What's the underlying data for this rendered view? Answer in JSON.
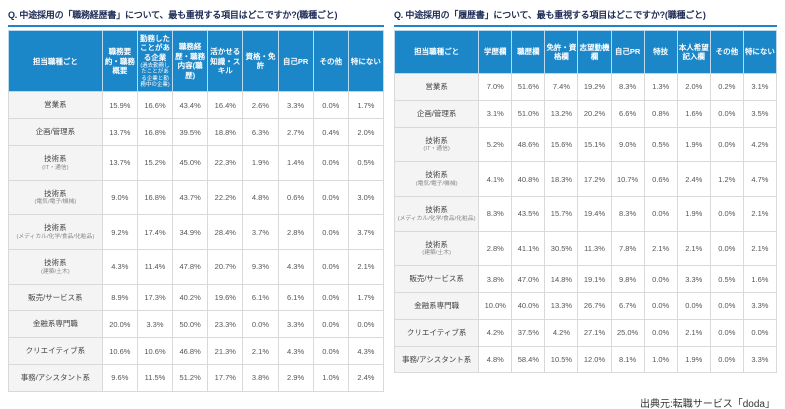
{
  "footer": {
    "source": "出典元:転職サービス「doda」"
  },
  "chart_data": [
    {
      "type": "table",
      "title": "Q. 中途採用の「職務経歴書」について、最も重視する項目はどこですか?(職種ごと)",
      "row_header_label": "担当職種ごと",
      "columns": [
        {
          "label": "職務要約・職務概要",
          "note": ""
        },
        {
          "label": "勤務したことがある企業",
          "note": "(過去勤務したことがある企業と勤務中の企業)"
        },
        {
          "label": "職務経歴・職務内容(職歴)",
          "note": ""
        },
        {
          "label": "活かせる知識・スキル",
          "note": ""
        },
        {
          "label": "資格・免許",
          "note": ""
        },
        {
          "label": "自己PR",
          "note": ""
        },
        {
          "label": "その他",
          "note": ""
        },
        {
          "label": "特にない",
          "note": ""
        }
      ],
      "rows": [
        {
          "label": "営業系",
          "sublabel": "",
          "values": [
            "15.9%",
            "16.6%",
            "43.4%",
            "16.4%",
            "2.6%",
            "3.3%",
            "0.0%",
            "1.7%"
          ]
        },
        {
          "label": "企画/管理系",
          "sublabel": "",
          "values": [
            "13.7%",
            "16.8%",
            "39.5%",
            "18.8%",
            "6.3%",
            "2.7%",
            "0.4%",
            "2.0%"
          ]
        },
        {
          "label": "技術系",
          "sublabel": "(IT・通信)",
          "values": [
            "13.7%",
            "15.2%",
            "45.0%",
            "22.3%",
            "1.9%",
            "1.4%",
            "0.0%",
            "0.5%"
          ]
        },
        {
          "label": "技術系",
          "sublabel": "(電気/電子/機械)",
          "values": [
            "9.0%",
            "16.8%",
            "43.7%",
            "22.2%",
            "4.8%",
            "0.6%",
            "0.0%",
            "3.0%"
          ]
        },
        {
          "label": "技術系",
          "sublabel": "(メディカル/化学/食品/化粧品)",
          "values": [
            "9.2%",
            "17.4%",
            "34.9%",
            "28.4%",
            "3.7%",
            "2.8%",
            "0.0%",
            "3.7%"
          ]
        },
        {
          "label": "技術系",
          "sublabel": "(建築/土木)",
          "values": [
            "4.3%",
            "11.4%",
            "47.8%",
            "20.7%",
            "9.3%",
            "4.3%",
            "0.0%",
            "2.1%"
          ]
        },
        {
          "label": "販売/サービス系",
          "sublabel": "",
          "values": [
            "8.9%",
            "17.3%",
            "40.2%",
            "19.6%",
            "6.1%",
            "6.1%",
            "0.0%",
            "1.7%"
          ]
        },
        {
          "label": "金融系専門職",
          "sublabel": "",
          "values": [
            "20.0%",
            "3.3%",
            "50.0%",
            "23.3%",
            "0.0%",
            "3.3%",
            "0.0%",
            "0.0%"
          ]
        },
        {
          "label": "クリエイティブ系",
          "sublabel": "",
          "values": [
            "10.6%",
            "10.6%",
            "46.8%",
            "21.3%",
            "2.1%",
            "4.3%",
            "0.0%",
            "4.3%"
          ]
        },
        {
          "label": "事務/アシスタント系",
          "sublabel": "",
          "values": [
            "9.6%",
            "11.5%",
            "51.2%",
            "17.7%",
            "3.8%",
            "2.9%",
            "1.0%",
            "2.4%"
          ]
        }
      ]
    },
    {
      "type": "table",
      "title": "Q. 中途採用の「履歴書」について、最も重視する項目はどこですか?(職種ごと)",
      "row_header_label": "担当職種ごと",
      "columns": [
        {
          "label": "学歴欄",
          "note": ""
        },
        {
          "label": "職歴欄",
          "note": ""
        },
        {
          "label": "免許・資格欄",
          "note": ""
        },
        {
          "label": "志望動機欄",
          "note": ""
        },
        {
          "label": "自己PR",
          "note": ""
        },
        {
          "label": "特技",
          "note": ""
        },
        {
          "label": "本人希望記入欄",
          "note": ""
        },
        {
          "label": "その他",
          "note": ""
        },
        {
          "label": "特にない",
          "note": ""
        }
      ],
      "rows": [
        {
          "label": "営業系",
          "sublabel": "",
          "values": [
            "7.0%",
            "51.6%",
            "7.4%",
            "19.2%",
            "8.3%",
            "1.3%",
            "2.0%",
            "0.2%",
            "3.1%"
          ]
        },
        {
          "label": "企画/管理系",
          "sublabel": "",
          "values": [
            "3.1%",
            "51.0%",
            "13.2%",
            "20.2%",
            "6.6%",
            "0.8%",
            "1.6%",
            "0.0%",
            "3.5%"
          ]
        },
        {
          "label": "技術系",
          "sublabel": "(IT・通信)",
          "values": [
            "5.2%",
            "48.6%",
            "15.6%",
            "15.1%",
            "9.0%",
            "0.5%",
            "1.9%",
            "0.0%",
            "4.2%"
          ]
        },
        {
          "label": "技術系",
          "sublabel": "(電気/電子/機械)",
          "values": [
            "4.1%",
            "40.8%",
            "18.3%",
            "17.2%",
            "10.7%",
            "0.6%",
            "2.4%",
            "1.2%",
            "4.7%"
          ]
        },
        {
          "label": "技術系",
          "sublabel": "(メディカル/化学/食品/化粧品)",
          "values": [
            "8.3%",
            "43.5%",
            "15.7%",
            "19.4%",
            "8.3%",
            "0.0%",
            "1.9%",
            "0.0%",
            "2.1%"
          ]
        },
        {
          "label": "技術系",
          "sublabel": "(建築/土木)",
          "values": [
            "2.8%",
            "41.1%",
            "30.5%",
            "11.3%",
            "7.8%",
            "2.1%",
            "2.1%",
            "0.0%",
            "2.1%"
          ]
        },
        {
          "label": "販売/サービス系",
          "sublabel": "",
          "values": [
            "3.8%",
            "47.0%",
            "14.8%",
            "19.1%",
            "9.8%",
            "0.0%",
            "3.3%",
            "0.5%",
            "1.6%"
          ]
        },
        {
          "label": "金融系専門職",
          "sublabel": "",
          "values": [
            "10.0%",
            "40.0%",
            "13.3%",
            "26.7%",
            "6.7%",
            "0.0%",
            "0.0%",
            "0.0%",
            "3.3%"
          ]
        },
        {
          "label": "クリエイティブ系",
          "sublabel": "",
          "values": [
            "4.2%",
            "37.5%",
            "4.2%",
            "27.1%",
            "25.0%",
            "0.0%",
            "2.1%",
            "0.0%",
            "0.0%"
          ]
        },
        {
          "label": "事務/アシスタント系",
          "sublabel": "",
          "values": [
            "4.8%",
            "58.4%",
            "10.5%",
            "12.0%",
            "8.1%",
            "1.0%",
            "1.9%",
            "0.0%",
            "3.3%"
          ]
        }
      ]
    }
  ],
  "colors": {
    "header_blue": "#1b86c8",
    "title_navy": "#1c2b55",
    "label_bg": "#f4f4f4",
    "border_gray": "#d9d9d9"
  }
}
